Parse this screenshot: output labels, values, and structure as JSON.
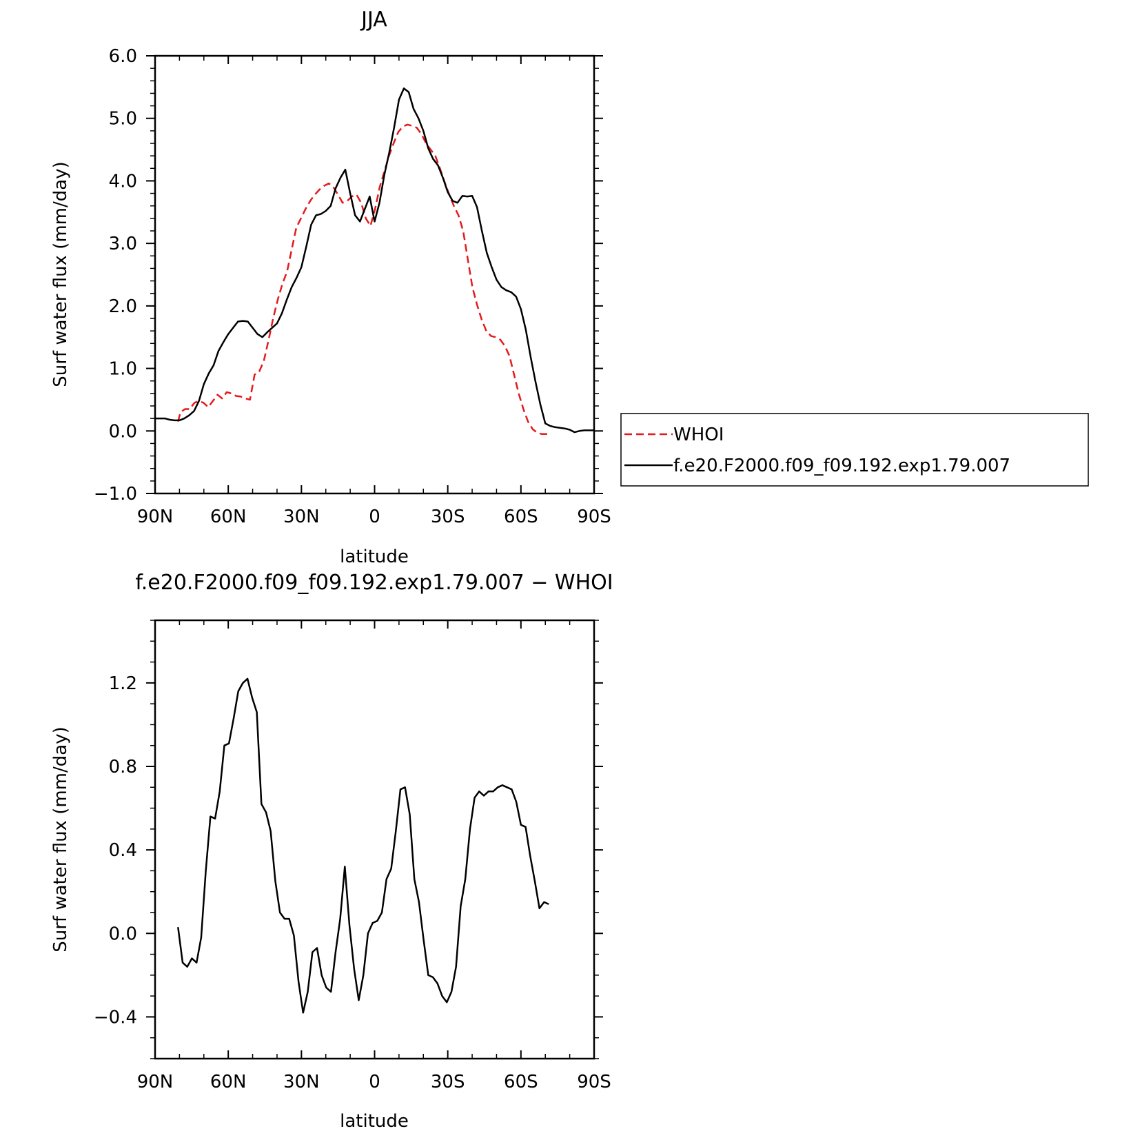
{
  "chart_data": [
    {
      "type": "line",
      "title": "JJA",
      "xlabel": "latitude",
      "ylabel": "Surf water flux (mm/day)",
      "xlim": [
        90,
        -90
      ],
      "ylim": [
        -1.0,
        6.0
      ],
      "xticks": [
        {
          "value": 90,
          "label": "90N"
        },
        {
          "value": 60,
          "label": "60N"
        },
        {
          "value": 30,
          "label": "30N"
        },
        {
          "value": 0,
          "label": "0"
        },
        {
          "value": -30,
          "label": "30S"
        },
        {
          "value": -60,
          "label": "60S"
        },
        {
          "value": -90,
          "label": "90S"
        }
      ],
      "yticks": [
        {
          "value": 6.0,
          "label": "6.0"
        },
        {
          "value": 5.0,
          "label": "5.0"
        },
        {
          "value": 4.0,
          "label": "4.0"
        },
        {
          "value": 3.0,
          "label": "3.0"
        },
        {
          "value": 2.0,
          "label": "2.0"
        },
        {
          "value": 1.0,
          "label": "1.0"
        },
        {
          "value": 0.0,
          "label": "0.0"
        },
        {
          "value": -1.0,
          "label": "−1.0"
        }
      ],
      "legend_position": "right",
      "series": [
        {
          "name": "WHOI",
          "color": "#e41a1c",
          "dash": "dashed",
          "x": [
            80.6,
            79.6,
            77.7,
            75.8,
            73.9,
            72.0,
            70.1,
            68.2,
            66.3,
            64.4,
            62.5,
            60.6,
            58.7,
            56.8,
            54.9,
            53.0,
            51.1,
            49.2,
            47.3,
            45.4,
            43.5,
            41.6,
            39.7,
            37.8,
            35.9,
            34.0,
            32.1,
            30.2,
            28.3,
            26.4,
            24.5,
            22.6,
            20.7,
            18.8,
            16.9,
            15.0,
            13.1,
            11.2,
            9.3,
            7.4,
            5.5,
            3.6,
            1.7,
            -0.2,
            -2.1,
            -4.0,
            -5.9,
            -7.8,
            -9.7,
            -11.6,
            -13.5,
            -15.4,
            -17.3,
            -19.2,
            -21.1,
            -23.0,
            -24.9,
            -26.8,
            -28.7,
            -30.6,
            -32.5,
            -34.4,
            -36.3,
            -38.2,
            -40.1,
            -42.0,
            -43.9,
            -45.8,
            -47.7,
            -49.6,
            -51.5,
            -53.4,
            -55.3,
            -57.2,
            -59.1,
            -61.0,
            -62.9,
            -64.8,
            -66.7,
            -68.6,
            -70.5,
            -72.4
          ],
          "y": [
            0.15,
            0.3,
            0.35,
            0.35,
            0.45,
            0.48,
            0.45,
            0.38,
            0.48,
            0.58,
            0.52,
            0.62,
            0.6,
            0.56,
            0.55,
            0.52,
            0.5,
            0.9,
            0.95,
            1.12,
            1.45,
            1.8,
            2.1,
            2.35,
            2.55,
            2.9,
            3.25,
            3.4,
            3.55,
            3.68,
            3.78,
            3.86,
            3.92,
            3.96,
            3.9,
            3.78,
            3.65,
            3.68,
            3.75,
            3.78,
            3.65,
            3.4,
            3.28,
            3.55,
            3.9,
            4.15,
            4.4,
            4.6,
            4.78,
            4.87,
            4.9,
            4.88,
            4.85,
            4.75,
            4.6,
            4.5,
            4.4,
            4.2,
            3.98,
            3.78,
            3.6,
            3.45,
            3.2,
            2.75,
            2.3,
            2.02,
            1.78,
            1.6,
            1.52,
            1.5,
            1.46,
            1.36,
            1.2,
            0.9,
            0.6,
            0.35,
            0.15,
            0.03,
            -0.03,
            -0.05,
            -0.05,
            -0.06
          ]
        },
        {
          "name": "f.e20.F2000.f09_f09.192.exp1.79.007",
          "color": "#000000",
          "dash": "solid",
          "x": [
            90,
            88,
            86,
            84,
            82,
            80,
            78,
            76,
            74,
            72,
            70,
            68,
            66,
            64,
            62,
            60,
            58,
            56,
            54,
            52,
            50,
            48,
            46,
            44,
            42,
            40,
            38,
            36,
            34,
            32,
            30,
            28,
            26,
            24,
            22,
            20,
            18,
            16,
            14,
            12,
            10,
            8,
            6,
            4,
            2,
            0,
            -2,
            -4,
            -6,
            -8,
            -10,
            -12,
            -14,
            -16,
            -18,
            -20,
            -22,
            -24,
            -26,
            -28,
            -30,
            -32,
            -34,
            -36,
            -38,
            -40,
            -42,
            -44,
            -46,
            -48,
            -50,
            -52,
            -54,
            -56,
            -58,
            -60,
            -62,
            -64,
            -66,
            -68,
            -70,
            -72,
            -74,
            -76,
            -78,
            -80,
            -82,
            -84,
            -86,
            -88,
            -90
          ],
          "y": [
            0.2,
            0.2,
            0.2,
            0.18,
            0.17,
            0.17,
            0.2,
            0.25,
            0.32,
            0.48,
            0.75,
            0.92,
            1.05,
            1.28,
            1.42,
            1.55,
            1.65,
            1.75,
            1.76,
            1.75,
            1.65,
            1.55,
            1.5,
            1.58,
            1.65,
            1.72,
            1.88,
            2.1,
            2.3,
            2.45,
            2.62,
            2.95,
            3.3,
            3.45,
            3.47,
            3.52,
            3.6,
            3.88,
            4.05,
            4.18,
            3.8,
            3.45,
            3.35,
            3.55,
            3.75,
            3.35,
            3.65,
            4.1,
            4.45,
            4.85,
            5.3,
            5.48,
            5.42,
            5.15,
            5.0,
            4.8,
            4.52,
            4.35,
            4.25,
            4.05,
            3.82,
            3.68,
            3.65,
            3.76,
            3.75,
            3.76,
            3.58,
            3.2,
            2.85,
            2.62,
            2.42,
            2.3,
            2.25,
            2.22,
            2.15,
            1.95,
            1.62,
            1.18,
            0.78,
            0.42,
            0.12,
            0.08,
            0.06,
            0.05,
            0.04,
            0.02,
            -0.02,
            0.0,
            0.01,
            0.01,
            0.01
          ]
        }
      ]
    },
    {
      "type": "line",
      "title": "f.e20.F2000.f09_f09.192.exp1.79.007 − WHOI",
      "xlabel": "latitude",
      "ylabel": "Surf water flux (mm/day)",
      "xlim": [
        90,
        -90
      ],
      "ylim": [
        -0.6,
        1.5
      ],
      "xticks": [
        {
          "value": 90,
          "label": "90N"
        },
        {
          "value": 60,
          "label": "60N"
        },
        {
          "value": 30,
          "label": "30N"
        },
        {
          "value": 0,
          "label": "0"
        },
        {
          "value": -30,
          "label": "30S"
        },
        {
          "value": -60,
          "label": "60S"
        },
        {
          "value": -90,
          "label": "90S"
        }
      ],
      "yticks": [
        {
          "value": 1.2,
          "label": "1.2"
        },
        {
          "value": 0.8,
          "label": "0.8"
        },
        {
          "value": 0.4,
          "label": "0.4"
        },
        {
          "value": 0.0,
          "label": "0.0"
        },
        {
          "value": -0.4,
          "label": "−0.4"
        }
      ],
      "series": [
        {
          "name": "",
          "color": "#000000",
          "dash": "solid",
          "x": [
            80.6,
            78.7,
            76.8,
            74.9,
            73.0,
            71.1,
            69.2,
            67.3,
            65.4,
            63.5,
            61.6,
            59.7,
            57.8,
            55.9,
            54.0,
            52.1,
            50.2,
            48.3,
            46.4,
            44.5,
            42.6,
            40.7,
            38.8,
            36.9,
            35.0,
            33.1,
            31.2,
            29.3,
            27.4,
            25.5,
            23.6,
            21.7,
            19.8,
            17.9,
            16.0,
            14.1,
            12.2,
            10.3,
            8.4,
            6.5,
            4.6,
            2.7,
            0.8,
            -1.1,
            -3.0,
            -4.9,
            -6.8,
            -8.7,
            -10.6,
            -12.5,
            -14.4,
            -16.3,
            -18.2,
            -20.1,
            -22.0,
            -23.9,
            -25.8,
            -27.7,
            -29.6,
            -31.5,
            -33.4,
            -35.3,
            -37.2,
            -39.1,
            -41.0,
            -42.9,
            -44.8,
            -46.7,
            -48.6,
            -50.5,
            -52.4,
            -54.3,
            -56.2,
            -58.1,
            -60.0,
            -61.9,
            -63.8,
            -65.7,
            -67.6,
            -69.5,
            -71.4
          ],
          "y": [
            0.03,
            -0.14,
            -0.16,
            -0.12,
            -0.14,
            -0.02,
            0.3,
            0.56,
            0.55,
            0.68,
            0.9,
            0.91,
            1.03,
            1.16,
            1.2,
            1.22,
            1.13,
            1.06,
            0.62,
            0.58,
            0.49,
            0.25,
            0.1,
            0.07,
            0.07,
            -0.01,
            -0.23,
            -0.38,
            -0.28,
            -0.09,
            -0.07,
            -0.2,
            -0.26,
            -0.28,
            -0.09,
            0.07,
            0.32,
            0.04,
            -0.17,
            -0.32,
            -0.2,
            0.0,
            0.05,
            0.06,
            0.1,
            0.26,
            0.31,
            0.49,
            0.69,
            0.7,
            0.57,
            0.26,
            0.15,
            -0.03,
            -0.2,
            -0.21,
            -0.24,
            -0.3,
            -0.33,
            -0.28,
            -0.16,
            0.13,
            0.26,
            0.5,
            0.65,
            0.68,
            0.66,
            0.68,
            0.68,
            0.7,
            0.71,
            0.7,
            0.69,
            0.63,
            0.52,
            0.51,
            0.37,
            0.25,
            0.12,
            0.15,
            0.14
          ]
        }
      ]
    }
  ]
}
